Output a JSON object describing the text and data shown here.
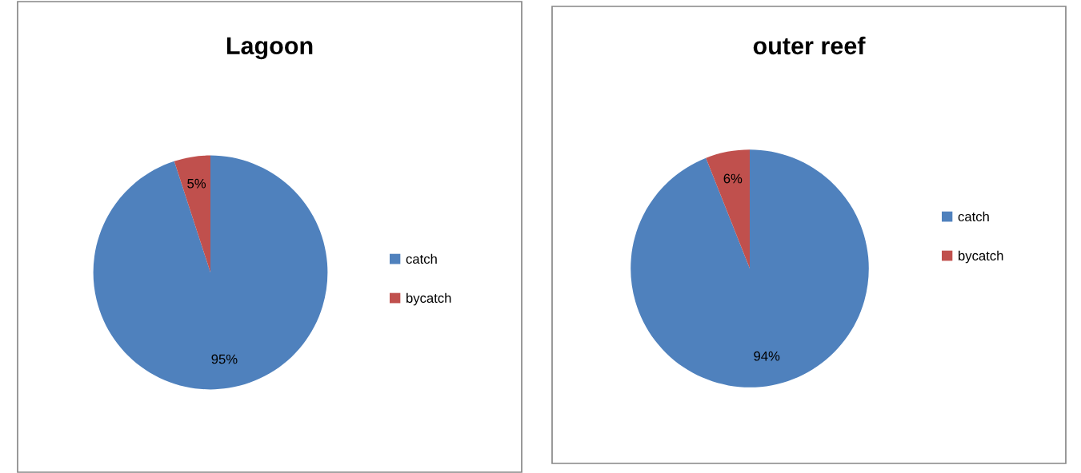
{
  "chart_data": [
    {
      "type": "pie",
      "title": "Lagoon",
      "categories": [
        "catch",
        "bycatch"
      ],
      "values": [
        95,
        5
      ],
      "colors": [
        "#4f81bd",
        "#c0504d"
      ],
      "data_labels": true,
      "value_labels": [
        "95%",
        "5%"
      ],
      "legend": "right"
    },
    {
      "type": "pie",
      "title": "outer reef",
      "categories": [
        "catch",
        "bycatch"
      ],
      "values": [
        94,
        6
      ],
      "colors": [
        "#4f81bd",
        "#c0504d"
      ],
      "data_labels": true,
      "value_labels": [
        "94%",
        "6%"
      ],
      "legend": "right"
    }
  ]
}
